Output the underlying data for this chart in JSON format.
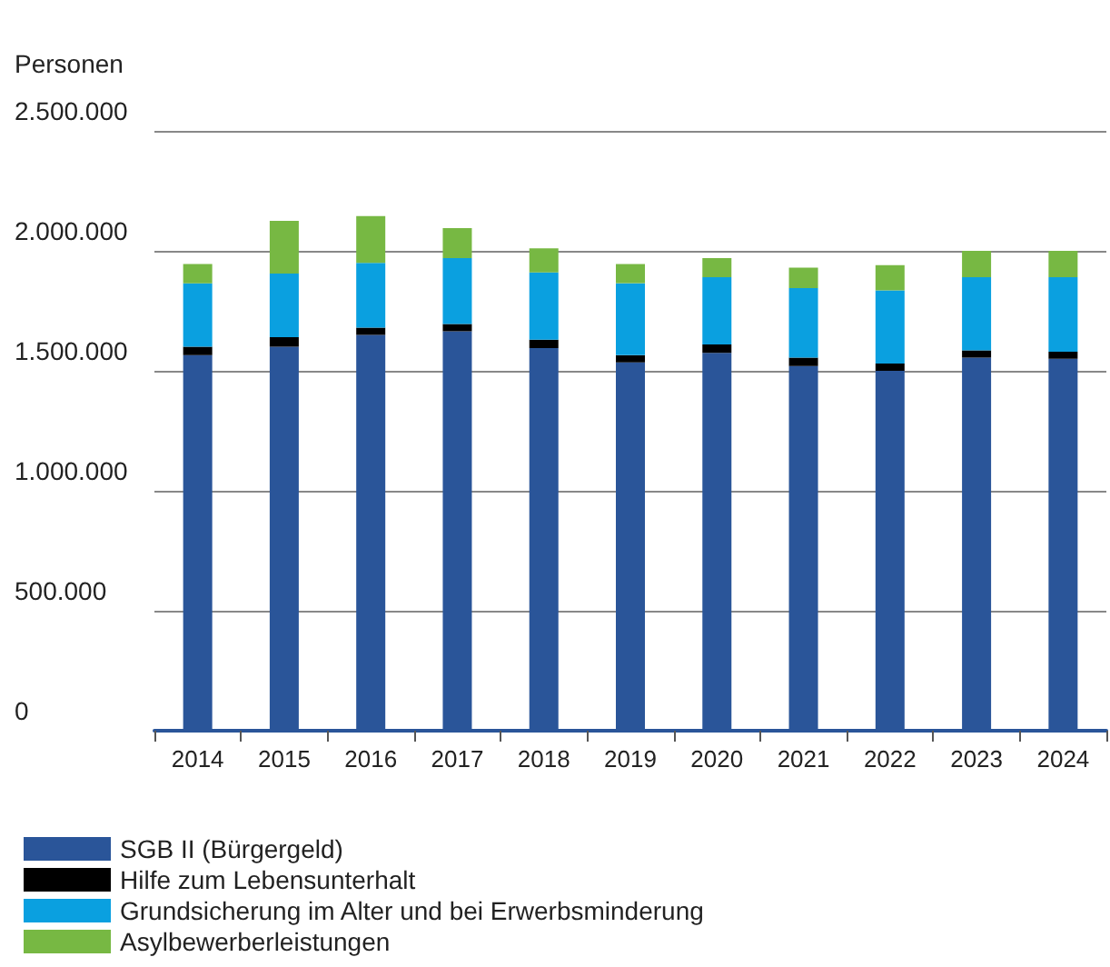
{
  "chart_data": {
    "type": "bar",
    "stacked": true,
    "ylabel": "Personen",
    "categories": [
      "2014",
      "2015",
      "2016",
      "2017",
      "2018",
      "2019",
      "2020",
      "2021",
      "2022",
      "2023",
      "2024"
    ],
    "series": [
      {
        "name": "SGB II (Bürgergeld)",
        "color": "#2a5599",
        "values": [
          1565000,
          1600000,
          1650000,
          1665000,
          1595000,
          1535000,
          1575000,
          1520000,
          1500000,
          1555000,
          1550000
        ]
      },
      {
        "name": "Hilfe zum Lebensunterhalt",
        "color": "#000000",
        "values": [
          35000,
          40000,
          30000,
          30000,
          35000,
          30000,
          35000,
          35000,
          30000,
          30000,
          30000
        ]
      },
      {
        "name": "Grundsicherung im Alter und bei Erwerbsminderung",
        "color": "#0aa0e0",
        "values": [
          265000,
          265000,
          270000,
          275000,
          280000,
          300000,
          280000,
          290000,
          305000,
          305000,
          310000
        ]
      },
      {
        "name": "Asylbewerberleistungen",
        "color": "#77b843",
        "values": [
          80000,
          220000,
          195000,
          125000,
          100000,
          80000,
          80000,
          85000,
          105000,
          110000,
          110000
        ]
      }
    ],
    "ylim": [
      0,
      2500000
    ],
    "yticks": [
      0,
      {
        "value": 500000,
        "label": "500.000"
      },
      {
        "value": 1000000,
        "label": "1.000.000"
      },
      {
        "value": 1500000,
        "label": "1.500.000"
      },
      {
        "value": 2000000,
        "label": "2.000.000"
      },
      {
        "value": 2500000,
        "label": "2.500.000"
      }
    ],
    "grid": "y",
    "legend": "bottom"
  }
}
